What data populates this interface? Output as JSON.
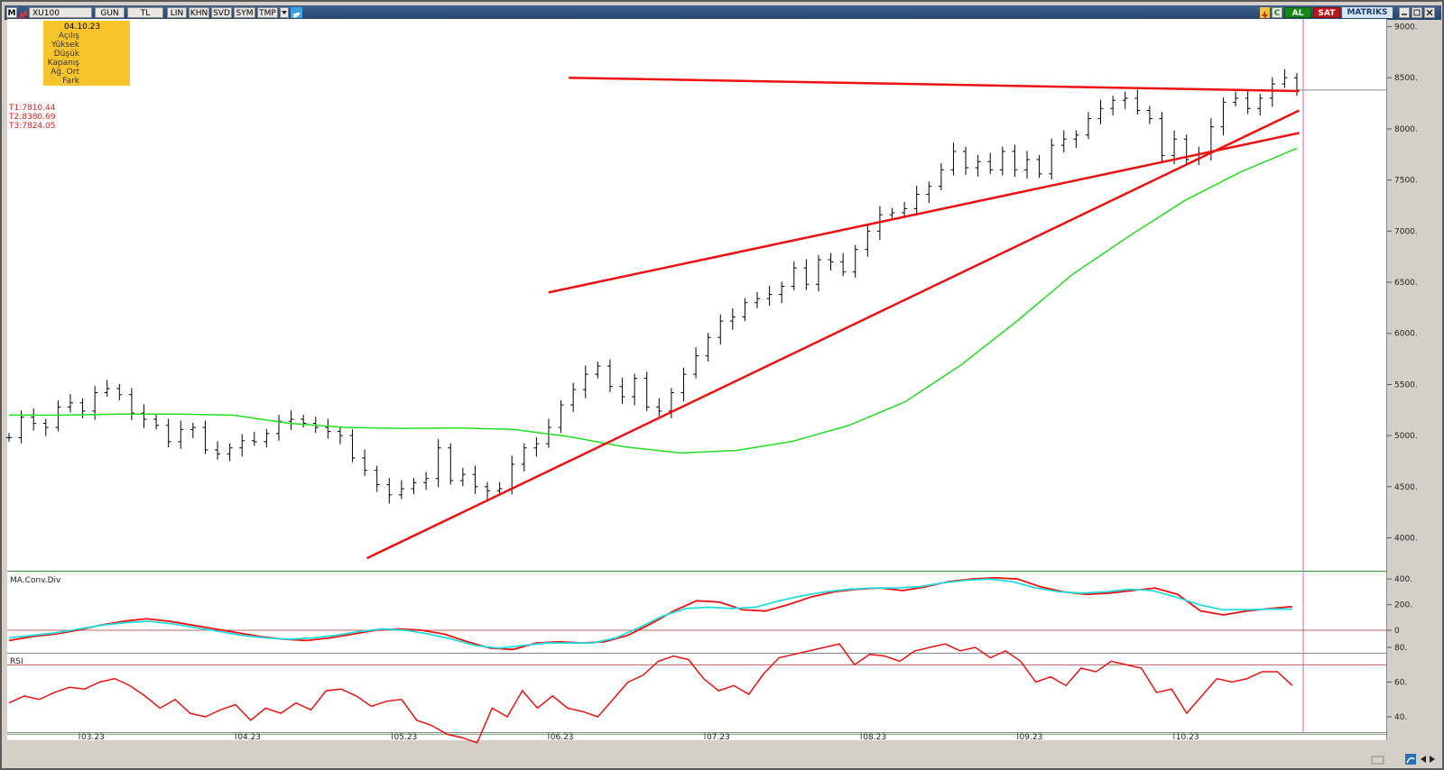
{
  "toolbar": {
    "menu_letter": "M",
    "symbol": "XU100",
    "buttons": [
      "GUN",
      "TL",
      "LIN",
      "KHN",
      "SVD",
      "SYM",
      "TMP"
    ],
    "right_buttons": [
      "C",
      "AL",
      "SAT"
    ],
    "brand": "MATRIKS"
  },
  "info_box": {
    "date": "04.10.23",
    "fields": [
      "Açılış",
      "Yüksek",
      "Düşük",
      "Kapanış",
      "Ağ. Ort",
      "Fark"
    ]
  },
  "trend_values": [
    "T1:7810.44",
    "T2:8380.69",
    "T3:7824.05"
  ],
  "colors": {
    "price": "#000000",
    "moving_average": "#22dd22",
    "trendline": "#ee1111",
    "macd": "#ee1111",
    "signal": "#22dddd",
    "rsi": "#ee1111",
    "cursor": "#cc66cc",
    "plot_bg": "#ffffff",
    "titlebar": "#2e4d7b"
  },
  "chart_data": [
    {
      "type": "ohlc",
      "symbol": "XU100",
      "y_ticks": [
        "4000",
        "4500",
        "5000",
        "5500",
        "6000",
        "6500",
        "7000",
        "7500",
        "8000",
        "8500",
        "9000"
      ],
      "ylim": [
        3750,
        9100
      ],
      "x_ticks": [
        "03.23",
        "04.23",
        "05.23",
        "06.23",
        "07.23",
        "08.23",
        "09.23",
        "10.23"
      ],
      "closes": [
        4980,
        5180,
        5120,
        5080,
        5280,
        5320,
        5240,
        5420,
        5460,
        5400,
        5220,
        5160,
        5100,
        4940,
        5060,
        5080,
        4860,
        4820,
        4880,
        4950,
        4940,
        5020,
        5140,
        5160,
        5120,
        5080,
        5040,
        5000,
        4780,
        4660,
        4520,
        4420,
        4480,
        4540,
        4580,
        4880,
        4560,
        4620,
        4500,
        4460,
        4480,
        4720,
        4880,
        4920,
        5080,
        5300,
        5450,
        5600,
        5680,
        5480,
        5380,
        5560,
        5280,
        5240,
        5420,
        5600,
        5780,
        5960,
        6120,
        6160,
        6300,
        6340,
        6380,
        6460,
        6640,
        6480,
        6720,
        6700,
        6600,
        6820,
        7000,
        7160,
        7180,
        7220,
        7360,
        7440,
        7600,
        7780,
        7620,
        7680,
        7600,
        7780,
        7600,
        7700,
        7560,
        7840,
        7900,
        7940,
        8100,
        8200,
        8280,
        8300,
        8180,
        8100,
        7740,
        7900,
        7700,
        7760,
        8020,
        8260,
        8300,
        8200,
        8300,
        8440,
        8500,
        8380
      ],
      "moving_average": [
        5200,
        5200,
        5210,
        5210,
        5200,
        5120,
        5080,
        5070,
        5075,
        5060,
        4990,
        4890,
        4830,
        4855,
        4945,
        5100,
        5330,
        5690,
        6120,
        6580,
        6950,
        7300,
        7580,
        7810
      ],
      "trendlines": [
        {
          "from": [
            "2023-04-27",
            3800
          ],
          "to": [
            "2023-10-25",
            8180
          ]
        },
        {
          "from": [
            "2023-06-01",
            6400
          ],
          "to": [
            "2023-10-25",
            7960
          ]
        },
        {
          "from": [
            "2023-06-05",
            8500
          ],
          "to": [
            "2023-10-25",
            8370
          ]
        }
      ],
      "cursor_date": "04.10.23",
      "grid": false
    },
    {
      "type": "line",
      "title": "MA.Conv.Div",
      "y_ticks": [
        "0",
        "200",
        "400"
      ],
      "series": [
        {
          "values": [
            -80,
            -50,
            -30,
            0,
            40,
            70,
            90,
            70,
            40,
            10,
            -20,
            -50,
            -70,
            -80,
            -60,
            -30,
            0,
            10,
            0,
            -30,
            -90,
            -140,
            -150,
            -100,
            -90,
            -100,
            -90,
            -40,
            50,
            150,
            230,
            220,
            160,
            150,
            200,
            260,
            300,
            320,
            330,
            310,
            340,
            380,
            400,
            410,
            400,
            340,
            300,
            280,
            290,
            310,
            330,
            280,
            150,
            120,
            150,
            170,
            185
          ]
        },
        {
          "values": [
            -60,
            -40,
            -20,
            10,
            40,
            60,
            70,
            50,
            20,
            -10,
            -40,
            -60,
            -70,
            -60,
            -40,
            -10,
            10,
            0,
            -30,
            -70,
            -120,
            -140,
            -120,
            -100,
            -100,
            -100,
            -60,
            20,
            110,
            170,
            180,
            170,
            180,
            230,
            270,
            300,
            320,
            330,
            330,
            340,
            370,
            390,
            400,
            380,
            330,
            300,
            290,
            300,
            320,
            310,
            260,
            200,
            160,
            160,
            165,
            165
          ]
        }
      ]
    },
    {
      "type": "line",
      "title": "RSI",
      "y_ticks": [
        "40",
        "60",
        "80"
      ],
      "levels": [
        30,
        70
      ],
      "values": [
        48,
        52,
        50,
        54,
        57,
        56,
        60,
        62,
        58,
        52,
        45,
        50,
        42,
        40,
        44,
        47,
        38,
        45,
        42,
        48,
        44,
        55,
        56,
        52,
        46,
        49,
        50,
        38,
        35,
        30,
        28,
        25,
        45,
        40,
        55,
        45,
        52,
        45,
        43,
        40,
        50,
        60,
        64,
        72,
        75,
        73,
        62,
        55,
        58,
        53,
        65,
        74,
        76,
        78,
        80,
        82,
        70,
        76,
        75,
        72,
        78,
        80,
        82,
        78,
        80,
        74,
        78,
        72,
        60,
        63,
        58,
        68,
        66,
        72,
        70,
        68,
        54,
        56,
        42,
        52,
        62,
        60,
        62,
        66,
        66,
        58
      ]
    }
  ]
}
